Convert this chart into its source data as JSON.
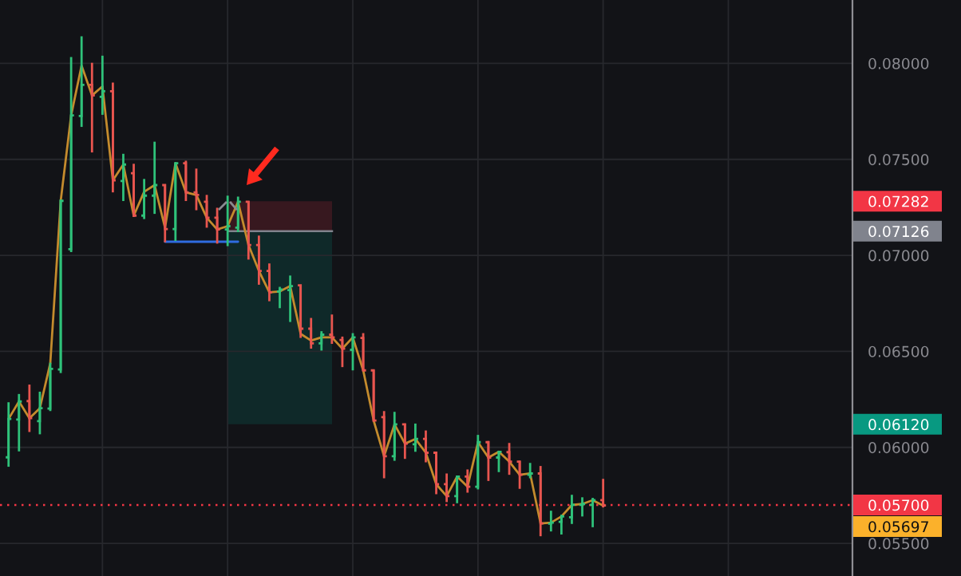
{
  "chart_data": {
    "type": "candlestick",
    "categories": [
      null,
      null,
      null,
      null,
      null,
      null,
      null,
      null,
      null,
      null,
      null,
      null,
      null,
      null,
      null,
      null,
      null,
      null,
      null,
      null,
      null,
      null,
      null,
      null,
      null,
      null,
      null,
      null,
      null,
      null,
      null,
      null,
      null,
      null,
      null,
      null,
      null,
      null,
      null,
      null,
      null,
      null,
      null,
      null,
      null,
      null,
      null,
      null,
      null,
      null,
      null,
      null,
      null,
      null,
      null,
      null,
      null,
      null
    ],
    "ohlc": [
      [
        0.05948,
        0.06235,
        0.05899,
        0.06148
      ],
      [
        0.06145,
        0.06278,
        0.05979,
        0.06239
      ],
      [
        0.06241,
        0.06327,
        0.0608,
        0.06152
      ],
      [
        0.06137,
        0.0629,
        0.06068,
        0.06204
      ],
      [
        0.06202,
        0.06441,
        0.06189,
        0.06409
      ],
      [
        0.06406,
        0.0729,
        0.06387,
        0.07284
      ],
      [
        0.07032,
        0.08033,
        0.07017,
        0.07729
      ],
      [
        0.07726,
        0.08141,
        0.07669,
        0.07888
      ],
      [
        0.07888,
        0.08003,
        0.07536,
        0.07833
      ],
      [
        0.07826,
        0.0804,
        0.07732,
        0.07855
      ],
      [
        0.07855,
        0.079,
        0.07328,
        0.07391
      ],
      [
        0.07387,
        0.07529,
        0.07283,
        0.07473
      ],
      [
        0.07428,
        0.07477,
        0.072,
        0.07207
      ],
      [
        0.07207,
        0.07398,
        0.07189,
        0.07311
      ],
      [
        0.07311,
        0.07592,
        0.07216,
        0.07366
      ],
      [
        0.07366,
        0.0737,
        0.07068,
        0.07137
      ],
      [
        0.07137,
        0.07484,
        0.07075,
        0.0748
      ],
      [
        0.0748,
        0.07493,
        0.07283,
        0.07328
      ],
      [
        0.07328,
        0.07452,
        0.07235,
        0.07315
      ],
      [
        0.07279,
        0.07315,
        0.07144,
        0.07196
      ],
      [
        0.07196,
        0.07248,
        0.07061,
        0.07135
      ],
      [
        0.07135,
        0.07311,
        0.07048,
        0.07152
      ],
      [
        0.07144,
        0.07306,
        0.07121,
        0.07279
      ],
      [
        0.07279,
        0.07283,
        0.06978,
        0.07054
      ],
      [
        0.07054,
        0.07103,
        0.06847,
        0.06919
      ],
      [
        0.06919,
        0.06958,
        0.06761,
        0.06808
      ],
      [
        0.06812,
        0.06836,
        0.06725,
        0.06822
      ],
      [
        0.06819,
        0.06895,
        0.06653,
        0.0684
      ],
      [
        0.06844,
        0.06847,
        0.0657,
        0.06618
      ],
      [
        0.06618,
        0.06674,
        0.06514,
        0.06542
      ],
      [
        0.06542,
        0.06605,
        0.06504,
        0.06587
      ],
      [
        0.06587,
        0.06692,
        0.06539,
        0.06573
      ],
      [
        0.06559,
        0.06577,
        0.06418,
        0.06514
      ],
      [
        0.06508,
        0.06595,
        0.06401,
        0.06573
      ],
      [
        0.0657,
        0.06595,
        0.06397,
        0.06401
      ],
      [
        0.06401,
        0.06404,
        0.06134,
        0.0614
      ],
      [
        0.06157,
        0.06189,
        0.05839,
        0.05954
      ],
      [
        0.05954,
        0.06185,
        0.0593,
        0.0612
      ],
      [
        0.0612,
        0.06124,
        0.0594,
        0.06019
      ],
      [
        0.06016,
        0.06124,
        0.05977,
        0.06044
      ],
      [
        0.06044,
        0.06088,
        0.05922,
        0.05972
      ],
      [
        0.05972,
        0.05977,
        0.05756,
        0.05808
      ],
      [
        0.05808,
        0.05864,
        0.05715,
        0.05746
      ],
      [
        0.05746,
        0.05853,
        0.05709,
        0.05848
      ],
      [
        0.05848,
        0.05885,
        0.05764,
        0.05795
      ],
      [
        0.05795,
        0.06065,
        0.05781,
        0.06027
      ],
      [
        0.06027,
        0.06033,
        0.05825,
        0.05947
      ],
      [
        0.05947,
        0.05982,
        0.05871,
        0.05977
      ],
      [
        0.05975,
        0.06023,
        0.05857,
        0.05926
      ],
      [
        0.05926,
        0.0593,
        0.05784,
        0.05857
      ],
      [
        0.05857,
        0.05919,
        0.05839,
        0.05864
      ],
      [
        0.05864,
        0.05903,
        0.05537,
        0.05604
      ],
      [
        0.05603,
        0.0567,
        0.05562,
        0.05608
      ],
      [
        0.05612,
        0.05649,
        0.05546,
        0.0564
      ],
      [
        0.05636,
        0.05753,
        0.05601,
        0.057
      ],
      [
        0.057,
        0.0574,
        0.0564,
        0.05705
      ],
      [
        0.057,
        0.05737,
        0.05584,
        0.05725
      ],
      [
        0.05725,
        0.05836,
        0.05687,
        0.05697
      ]
    ],
    "colors": [
      "#2fc27a",
      "#2fc27a",
      "#e8554f",
      "#2fc27a",
      "#2fc27a",
      "#2fc27a",
      "#2fc27a",
      "#2fc27a",
      "#e8554f",
      "#2fc27a",
      "#e8554f",
      "#2fc27a",
      "#e8554f",
      "#2fc27a",
      "#2fc27a",
      "#e8554f",
      "#2fc27a",
      "#e8554f",
      "#e8554f",
      "#e8554f",
      "#e8554f",
      "#2fc27a",
      "#2fc27a",
      "#e8554f",
      "#e8554f",
      "#e8554f",
      "#2fc27a",
      "#2fc27a",
      "#e8554f",
      "#e8554f",
      "#2fc27a",
      "#e8554f",
      "#e8554f",
      "#2fc27a",
      "#e8554f",
      "#e8554f",
      "#e8554f",
      "#2fc27a",
      "#e8554f",
      "#2fc27a",
      "#e8554f",
      "#e8554f",
      "#e8554f",
      "#2fc27a",
      "#e8554f",
      "#2fc27a",
      "#e8554f",
      "#2fc27a",
      "#e8554f",
      "#e8554f",
      "#2fc27a",
      "#e8554f",
      "#2fc27a",
      "#2fc27a",
      "#2fc27a",
      "#2fc27a",
      "#2fc27a",
      "#e8554f"
    ],
    "series": [
      {
        "type": "line",
        "color": "#c48b2d",
        "values": [
          0.06148,
          0.06239,
          0.06152,
          0.06204,
          0.06438,
          0.07284,
          0.07729,
          0.07988,
          0.07833,
          0.0788,
          0.07391,
          0.07473,
          0.07207,
          0.07331,
          0.07366,
          0.07144,
          0.0748,
          0.07328,
          0.07315,
          0.07196,
          0.07135,
          0.07152,
          0.07279,
          0.07054,
          0.06919,
          0.06808,
          0.06812,
          0.0684,
          0.06591,
          0.06556,
          0.06573,
          0.06573,
          0.06514,
          0.06573,
          0.06401,
          0.0614,
          0.05954,
          0.0612,
          0.06019,
          0.06044,
          0.05972,
          0.05808,
          0.05746,
          0.05848,
          0.05795,
          0.06027,
          0.05947,
          0.05977,
          0.05926,
          0.05857,
          0.05864,
          0.05604,
          0.05608,
          0.0564,
          0.057,
          0.05705,
          0.05725,
          0.05697
        ]
      },
      {
        "type": "line",
        "color": "#2f6ce0",
        "values": [
          null,
          null,
          null,
          null,
          null,
          null,
          null,
          null,
          null,
          null,
          null,
          null,
          null,
          null,
          null,
          0.07071,
          0.07071,
          0.07071,
          0.07071,
          0.07071,
          0.07071,
          0.07071,
          0.07071,
          null,
          null,
          null,
          null,
          null,
          null,
          null,
          null,
          null,
          null,
          null,
          null,
          null,
          null,
          null,
          null,
          null,
          null,
          null,
          null,
          null,
          null,
          null,
          null,
          null,
          null,
          null,
          null,
          null,
          null,
          null,
          null,
          null,
          null,
          null
        ]
      }
    ],
    "bands": [
      {
        "axis": "y",
        "from": 0.07126,
        "to": 0.07282,
        "color": "#f23645"
      },
      {
        "axis": "y",
        "from": 0.0612,
        "to": 0.07126,
        "color": "#089981"
      }
    ],
    "ref_lines": [
      {
        "axis": "y",
        "value": 0.07126,
        "color": "#80838d",
        "line_style": "solid"
      },
      {
        "axis": "y",
        "value": 0.057,
        "label": "0.05700",
        "color": "#f23645",
        "line_style": "dotted"
      }
    ],
    "annotations": [
      "0.07282",
      "0.07126",
      "0.06120",
      "0.05697"
    ],
    "ylim": [
      0.0533,
      0.0833
    ],
    "yticks": [
      {
        "value": 0.055,
        "label": "0.05500"
      },
      {
        "value": 0.06,
        "label": "0.06000"
      },
      {
        "value": 0.065,
        "label": "0.06500"
      },
      {
        "value": 0.07,
        "label": "0.07000"
      },
      {
        "value": 0.075,
        "label": "0.07500"
      },
      {
        "value": 0.08,
        "label": "0.08000"
      }
    ],
    "grid": true,
    "tick_labels": "y"
  }
}
